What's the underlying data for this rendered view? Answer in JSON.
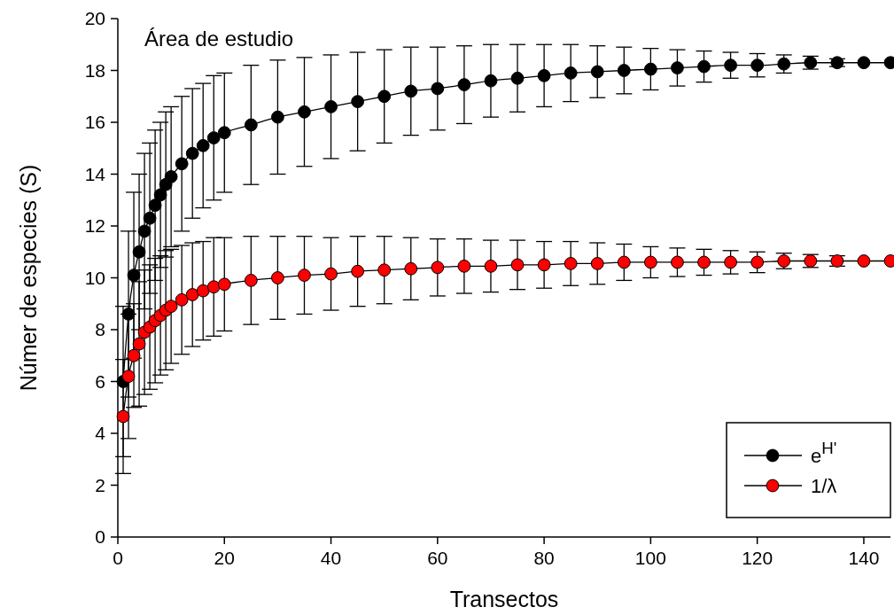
{
  "chart_data": {
    "type": "line",
    "title": "Área de estudio",
    "xlabel": "Transectos",
    "ylabel": "Númer de especies (S)",
    "x": [
      1,
      2,
      3,
      4,
      5,
      6,
      7,
      8,
      9,
      10,
      12,
      14,
      16,
      18,
      20,
      25,
      30,
      35,
      40,
      45,
      50,
      55,
      60,
      65,
      70,
      75,
      80,
      85,
      90,
      95,
      100,
      105,
      110,
      115,
      120,
      125,
      130,
      135,
      140,
      145
    ],
    "series": [
      {
        "name": "e$^{H'}$",
        "color": "#000000",
        "values": [
          6.0,
          8.6,
          10.1,
          11.0,
          11.8,
          12.3,
          12.8,
          13.2,
          13.6,
          13.9,
          14.4,
          14.8,
          15.1,
          15.4,
          15.6,
          15.9,
          16.2,
          16.4,
          16.6,
          16.8,
          17.0,
          17.2,
          17.3,
          17.45,
          17.6,
          17.7,
          17.8,
          17.9,
          17.95,
          18.0,
          18.05,
          18.1,
          18.15,
          18.2,
          18.2,
          18.25,
          18.3,
          18.3,
          18.3,
          18.3
        ],
        "errors": [
          2.9,
          3.2,
          3.2,
          3.0,
          3.0,
          2.9,
          2.9,
          2.8,
          2.8,
          2.7,
          2.6,
          2.5,
          2.4,
          2.4,
          2.3,
          2.3,
          2.2,
          2.1,
          2.0,
          1.9,
          1.8,
          1.7,
          1.6,
          1.5,
          1.4,
          1.3,
          1.2,
          1.1,
          1.0,
          0.9,
          0.8,
          0.7,
          0.6,
          0.5,
          0.45,
          0.35,
          0.25,
          0.15,
          null,
          null
        ]
      },
      {
        "name": "1/λ",
        "color": "#ff0000",
        "values": [
          4.65,
          6.2,
          7.0,
          7.45,
          7.9,
          8.1,
          8.35,
          8.55,
          8.75,
          8.9,
          9.15,
          9.35,
          9.5,
          9.65,
          9.75,
          9.9,
          10.0,
          10.1,
          10.15,
          10.25,
          10.3,
          10.35,
          10.4,
          10.45,
          10.45,
          10.5,
          10.5,
          10.55,
          10.55,
          10.6,
          10.6,
          10.6,
          10.6,
          10.6,
          10.6,
          10.65,
          10.65,
          10.65,
          10.65,
          10.65
        ],
        "errors": [
          2.2,
          2.4,
          2.0,
          2.4,
          2.4,
          2.4,
          2.4,
          2.3,
          2.3,
          2.2,
          2.1,
          2.0,
          1.9,
          1.9,
          1.8,
          1.7,
          1.6,
          1.5,
          1.4,
          1.35,
          1.3,
          1.2,
          1.1,
          1.05,
          1.0,
          0.95,
          0.9,
          0.85,
          0.8,
          0.7,
          0.6,
          0.55,
          0.5,
          0.45,
          0.4,
          0.3,
          0.25,
          0.2,
          null,
          null
        ]
      }
    ],
    "xlim": [
      0,
      145
    ],
    "xticks": [
      0,
      20,
      40,
      60,
      80,
      100,
      120,
      140
    ],
    "ylim": [
      0,
      20
    ],
    "yticks": [
      0,
      2,
      4,
      6,
      8,
      10,
      12,
      14,
      16,
      18,
      20
    ],
    "marker": "circle",
    "legend": "bottom right",
    "grid": false
  }
}
